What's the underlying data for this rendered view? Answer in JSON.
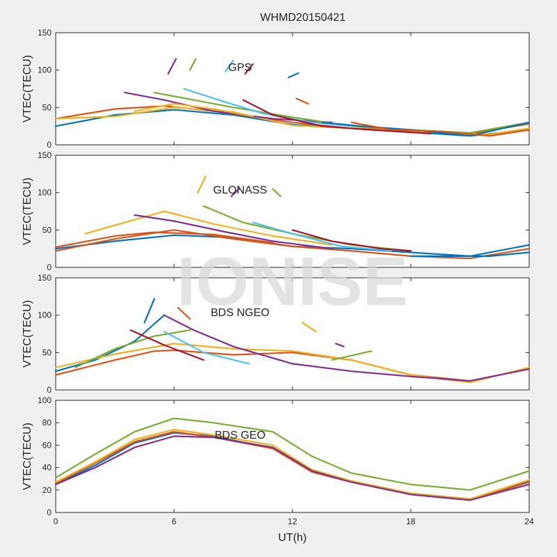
{
  "figure": {
    "title": "WHMD20150421",
    "xlabel": "UT(h)",
    "watermark": "IONISE",
    "x_ticks": [
      0,
      6,
      12,
      18,
      24
    ],
    "xlim": [
      0,
      24
    ]
  },
  "colors": {
    "background": "#f0f0f0",
    "axes_face": "#ffffff",
    "axes_edge": "#262626",
    "watermark": "#d9d9d9",
    "palette": [
      "#0072BD",
      "#D95319",
      "#EDB120",
      "#7E2F8E",
      "#77AC30",
      "#4DBEEE",
      "#A2142F"
    ]
  },
  "chart_data": [
    {
      "type": "line",
      "label": "GPS",
      "ylabel": "VTEC(TECU)",
      "ylim": [
        0,
        150
      ],
      "y_ticks": [
        0,
        50,
        100,
        150
      ],
      "grid": false,
      "series": [
        {
          "x": [
            0,
            3,
            6,
            9,
            12,
            15,
            18,
            21,
            24
          ],
          "y": [
            25,
            40,
            47,
            40,
            27,
            22,
            17,
            12,
            20
          ]
        },
        {
          "x": [
            0,
            3,
            5.5,
            8,
            12,
            15,
            18,
            21,
            24
          ],
          "y": [
            35,
            48,
            52,
            45,
            30,
            22,
            20,
            15,
            28
          ]
        },
        {
          "x": [
            0,
            3,
            6,
            9,
            12,
            15,
            18,
            22,
            24
          ],
          "y": [
            35,
            38,
            50,
            44,
            26,
            22,
            18,
            14,
            22
          ]
        },
        {
          "x": [
            3.5,
            5.5,
            8,
            11,
            14
          ],
          "y": [
            70,
            60,
            45,
            35,
            30
          ]
        },
        {
          "x": [
            5,
            7,
            9,
            12,
            15,
            18,
            21,
            24
          ],
          "y": [
            70,
            60,
            50,
            37,
            25,
            20,
            16,
            30
          ]
        },
        {
          "x": [
            6.5,
            8.5,
            10.5,
            13,
            15
          ],
          "y": [
            75,
            58,
            42,
            30,
            25
          ]
        },
        {
          "x": [
            9.5,
            11,
            13.5,
            16,
            19
          ],
          "y": [
            60,
            40,
            25,
            20,
            15
          ]
        },
        {
          "x": [
            13.5,
            15.5,
            18,
            21,
            24
          ],
          "y": [
            30,
            25,
            20,
            12,
            30
          ]
        },
        {
          "x": [
            15,
            17,
            19.5,
            22,
            24
          ],
          "y": [
            30,
            20,
            18,
            12,
            20
          ]
        },
        {
          "x": [
            4,
            6,
            8,
            10
          ],
          "y": [
            45,
            55,
            48,
            38
          ]
        },
        {
          "x": [
            5.7,
            6.1
          ],
          "y": [
            95,
            115
          ]
        },
        {
          "x": [
            6.8,
            7.1
          ],
          "y": [
            100,
            115
          ]
        },
        {
          "x": [
            8.6,
            9.0
          ],
          "y": [
            98,
            113
          ]
        },
        {
          "x": [
            9.6,
            10.0
          ],
          "y": [
            95,
            108
          ]
        },
        {
          "x": [
            11.8,
            12.3
          ],
          "y": [
            90,
            96
          ]
        },
        {
          "x": [
            12.2,
            12.8
          ],
          "y": [
            62,
            55
          ]
        }
      ]
    },
    {
      "type": "line",
      "label": "GLONASS",
      "ylabel": "VTEC(TECU)",
      "ylim": [
        0,
        150
      ],
      "y_ticks": [
        0,
        50,
        100,
        150
      ],
      "grid": false,
      "series": [
        {
          "x": [
            0,
            3,
            6,
            9,
            12,
            15,
            18,
            21,
            24
          ],
          "y": [
            25,
            35,
            43,
            40,
            28,
            25,
            20,
            15,
            30
          ]
        },
        {
          "x": [
            0,
            3,
            6,
            9,
            12,
            15,
            18,
            21,
            24
          ],
          "y": [
            22,
            38,
            50,
            38,
            28,
            22,
            15,
            12,
            25
          ]
        },
        {
          "x": [
            1.5,
            3.5,
            5.5,
            8,
            11,
            14
          ],
          "y": [
            45,
            60,
            75,
            58,
            42,
            30
          ]
        },
        {
          "x": [
            4,
            6,
            8.5,
            11,
            14
          ],
          "y": [
            70,
            62,
            48,
            35,
            25
          ]
        },
        {
          "x": [
            7.5,
            9.5,
            12,
            15,
            18
          ],
          "y": [
            82,
            60,
            45,
            30,
            22
          ]
        },
        {
          "x": [
            10,
            12,
            14.5,
            17
          ],
          "y": [
            60,
            45,
            28,
            22
          ]
        },
        {
          "x": [
            12,
            14,
            16.5,
            18
          ],
          "y": [
            50,
            35,
            25,
            22
          ]
        },
        {
          "x": [
            18,
            20,
            22,
            24
          ],
          "y": [
            15,
            15,
            15,
            20
          ]
        },
        {
          "x": [
            0,
            3,
            5,
            8,
            11
          ],
          "y": [
            27,
            42,
            47,
            44,
            33
          ]
        },
        {
          "x": [
            7.2,
            7.6
          ],
          "y": [
            100,
            122
          ]
        },
        {
          "x": [
            8.9,
            9.3
          ],
          "y": [
            95,
            105
          ]
        },
        {
          "x": [
            11,
            11.4
          ],
          "y": [
            105,
            95
          ]
        }
      ]
    },
    {
      "type": "line",
      "label": "BDS NGEO",
      "ylabel": "VTEC(TECU)",
      "ylim": [
        0,
        150
      ],
      "y_ticks": [
        0,
        50,
        100,
        150
      ],
      "grid": false,
      "series": [
        {
          "x": [
            0,
            2,
            4,
            5.5
          ],
          "y": [
            25,
            40,
            65,
            100
          ]
        },
        {
          "x": [
            0,
            3,
            5,
            6,
            9,
            12,
            15,
            18,
            21,
            24
          ],
          "y": [
            20,
            40,
            52,
            53,
            47,
            50,
            40,
            20,
            12,
            28
          ]
        },
        {
          "x": [
            0,
            3,
            6,
            9,
            12,
            15,
            18,
            21,
            24
          ],
          "y": [
            30,
            48,
            62,
            55,
            52,
            40,
            20,
            10,
            30
          ]
        },
        {
          "x": [
            5.5,
            7,
            9,
            12,
            15,
            18,
            21,
            24
          ],
          "y": [
            100,
            80,
            58,
            35,
            25,
            18,
            12,
            28
          ]
        },
        {
          "x": [
            1,
            3,
            5,
            6.8
          ],
          "y": [
            30,
            55,
            72,
            80
          ]
        },
        {
          "x": [
            5.5,
            7.5,
            9.8
          ],
          "y": [
            78,
            50,
            35
          ]
        },
        {
          "x": [
            3.8,
            5.5,
            7.5
          ],
          "y": [
            80,
            60,
            40
          ]
        },
        {
          "x": [
            4.5,
            5.0
          ],
          "y": [
            90,
            122
          ]
        },
        {
          "x": [
            6.2,
            6.8
          ],
          "y": [
            110,
            95
          ]
        },
        {
          "x": [
            12.5,
            13.2
          ],
          "y": [
            90,
            78
          ]
        },
        {
          "x": [
            14.2,
            14.6
          ],
          "y": [
            62,
            58
          ]
        },
        {
          "x": [
            14,
            16
          ],
          "y": [
            40,
            52
          ]
        }
      ]
    },
    {
      "type": "line",
      "label": "BDS GEO",
      "ylabel": "VTEC(TECU)",
      "ylim": [
        0,
        100
      ],
      "y_ticks": [
        0,
        20,
        40,
        60,
        80,
        100
      ],
      "grid": false,
      "series": [
        {
          "x": [
            0,
            2,
            4,
            6,
            8,
            11,
            13,
            15,
            18,
            21,
            24
          ],
          "y": [
            25,
            42,
            62,
            71,
            68,
            57,
            38,
            28,
            17,
            12,
            28
          ]
        },
        {
          "x": [
            0,
            2,
            4,
            6,
            8,
            11,
            13,
            15,
            18,
            21,
            24
          ],
          "y": [
            26,
            44,
            63,
            72,
            67,
            57,
            36,
            27,
            16,
            11,
            27
          ]
        },
        {
          "x": [
            0,
            2,
            4,
            6,
            8,
            11,
            13,
            15,
            18,
            21,
            24
          ],
          "y": [
            27,
            45,
            65,
            74,
            69,
            60,
            38,
            28,
            17,
            12,
            29
          ]
        },
        {
          "x": [
            0,
            2,
            4,
            6,
            8,
            11,
            13,
            15,
            18,
            21,
            24
          ],
          "y": [
            25,
            40,
            58,
            68,
            67,
            58,
            37,
            27,
            16,
            11,
            25
          ]
        },
        {
          "x": [
            0,
            2,
            4,
            6,
            8,
            11,
            13,
            15,
            18,
            21,
            24
          ],
          "y": [
            31,
            52,
            72,
            84,
            80,
            72,
            50,
            35,
            25,
            20,
            37
          ]
        }
      ]
    }
  ]
}
